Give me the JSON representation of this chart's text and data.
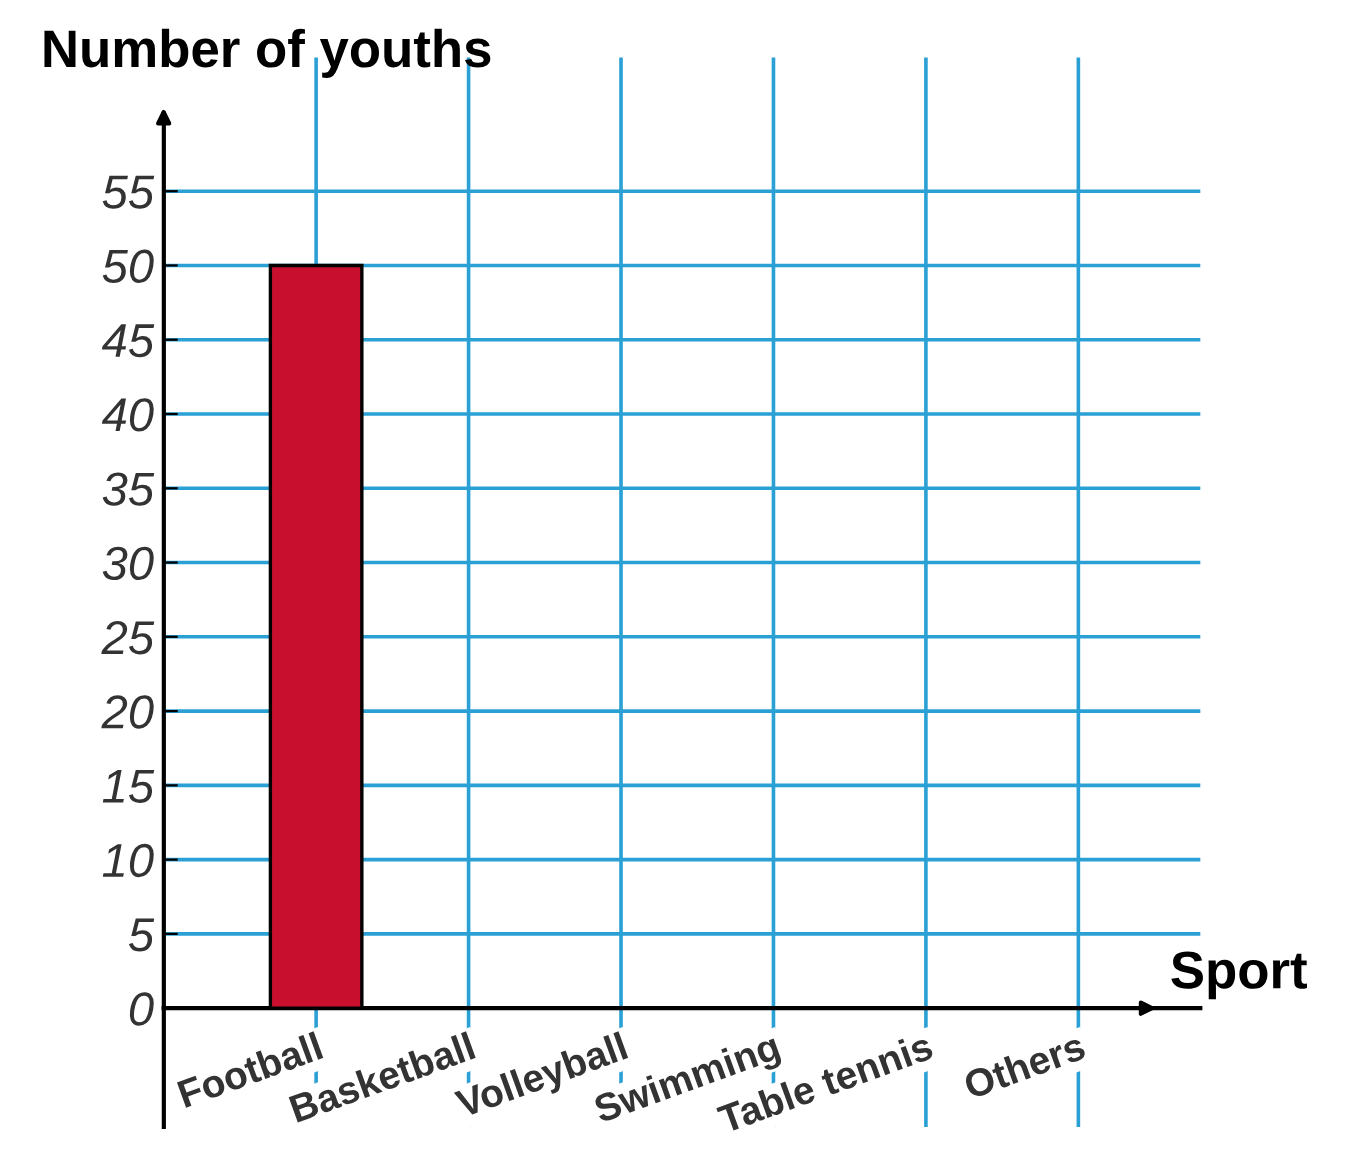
{
  "chart_data": {
    "type": "bar",
    "xlabel": "Sport",
    "ylabel": "Number of youths",
    "categories": [
      "Football",
      "Basketball",
      "Volleyball",
      "Swimming",
      "Table tennis",
      "Others"
    ],
    "values": [
      50,
      null,
      null,
      null,
      null,
      null
    ],
    "color": "#c8102e",
    "ylim": [
      -8,
      64
    ],
    "yticks": [
      0,
      5,
      10,
      15,
      20,
      25,
      30,
      35,
      40,
      45,
      50,
      55
    ],
    "grid": true
  }
}
